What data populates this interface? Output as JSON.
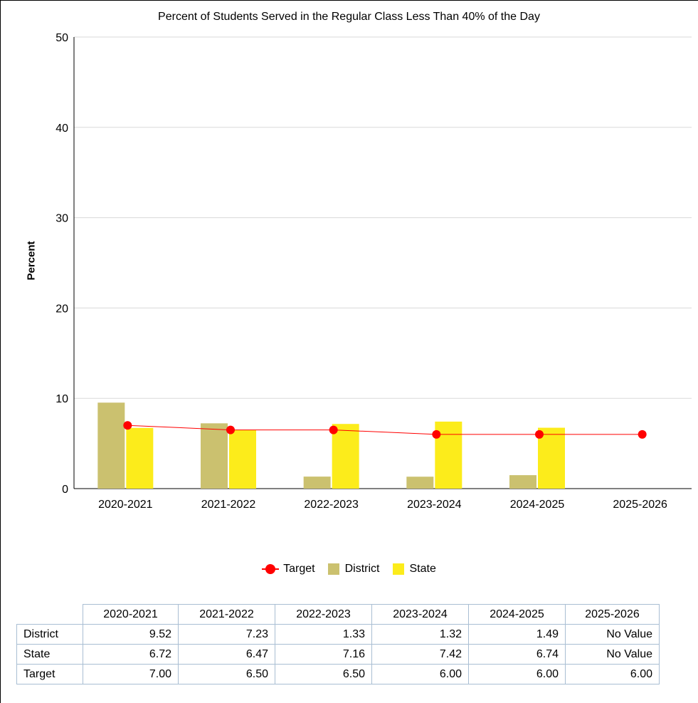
{
  "chart_data": {
    "type": "bar",
    "title": "Percent of Students Served in the Regular Class Less Than 40% of the Day",
    "ylabel": "Percent",
    "xlabel": "",
    "ylim": [
      0,
      50
    ],
    "yticks": [
      0,
      10,
      20,
      30,
      40,
      50
    ],
    "grid": true,
    "legend_position": "bottom",
    "categories": [
      "2020-2021",
      "2021-2022",
      "2022-2023",
      "2023-2024",
      "2024-2025",
      "2025-2026"
    ],
    "series": [
      {
        "name": "District",
        "kind": "bar",
        "color": "#cbc16f",
        "values": [
          9.52,
          7.23,
          1.33,
          1.32,
          1.49,
          null
        ]
      },
      {
        "name": "State",
        "kind": "bar",
        "color": "#fcec1b",
        "values": [
          6.72,
          6.47,
          7.16,
          7.42,
          6.74,
          null
        ]
      },
      {
        "name": "Target",
        "kind": "line",
        "color": "#ff0000",
        "values": [
          7.0,
          6.5,
          6.5,
          6.0,
          6.0,
          6.0
        ]
      }
    ]
  },
  "legend": [
    {
      "key": "target",
      "label": "Target",
      "color": "#ff0000"
    },
    {
      "key": "district",
      "label": "District",
      "color": "#cbc16f"
    },
    {
      "key": "state",
      "label": "State",
      "color": "#fcec1b"
    }
  ],
  "table": {
    "columns": [
      "2020-2021",
      "2021-2022",
      "2022-2023",
      "2023-2024",
      "2024-2025",
      "2025-2026"
    ],
    "rows": [
      {
        "label": "District",
        "cells": [
          "9.52",
          "7.23",
          "1.33",
          "1.32",
          "1.49",
          "No Value"
        ]
      },
      {
        "label": "State",
        "cells": [
          "6.72",
          "6.47",
          "7.16",
          "7.42",
          "6.74",
          "No Value"
        ]
      },
      {
        "label": "Target",
        "cells": [
          "7.00",
          "6.50",
          "6.50",
          "6.00",
          "6.00",
          "6.00"
        ]
      }
    ]
  }
}
